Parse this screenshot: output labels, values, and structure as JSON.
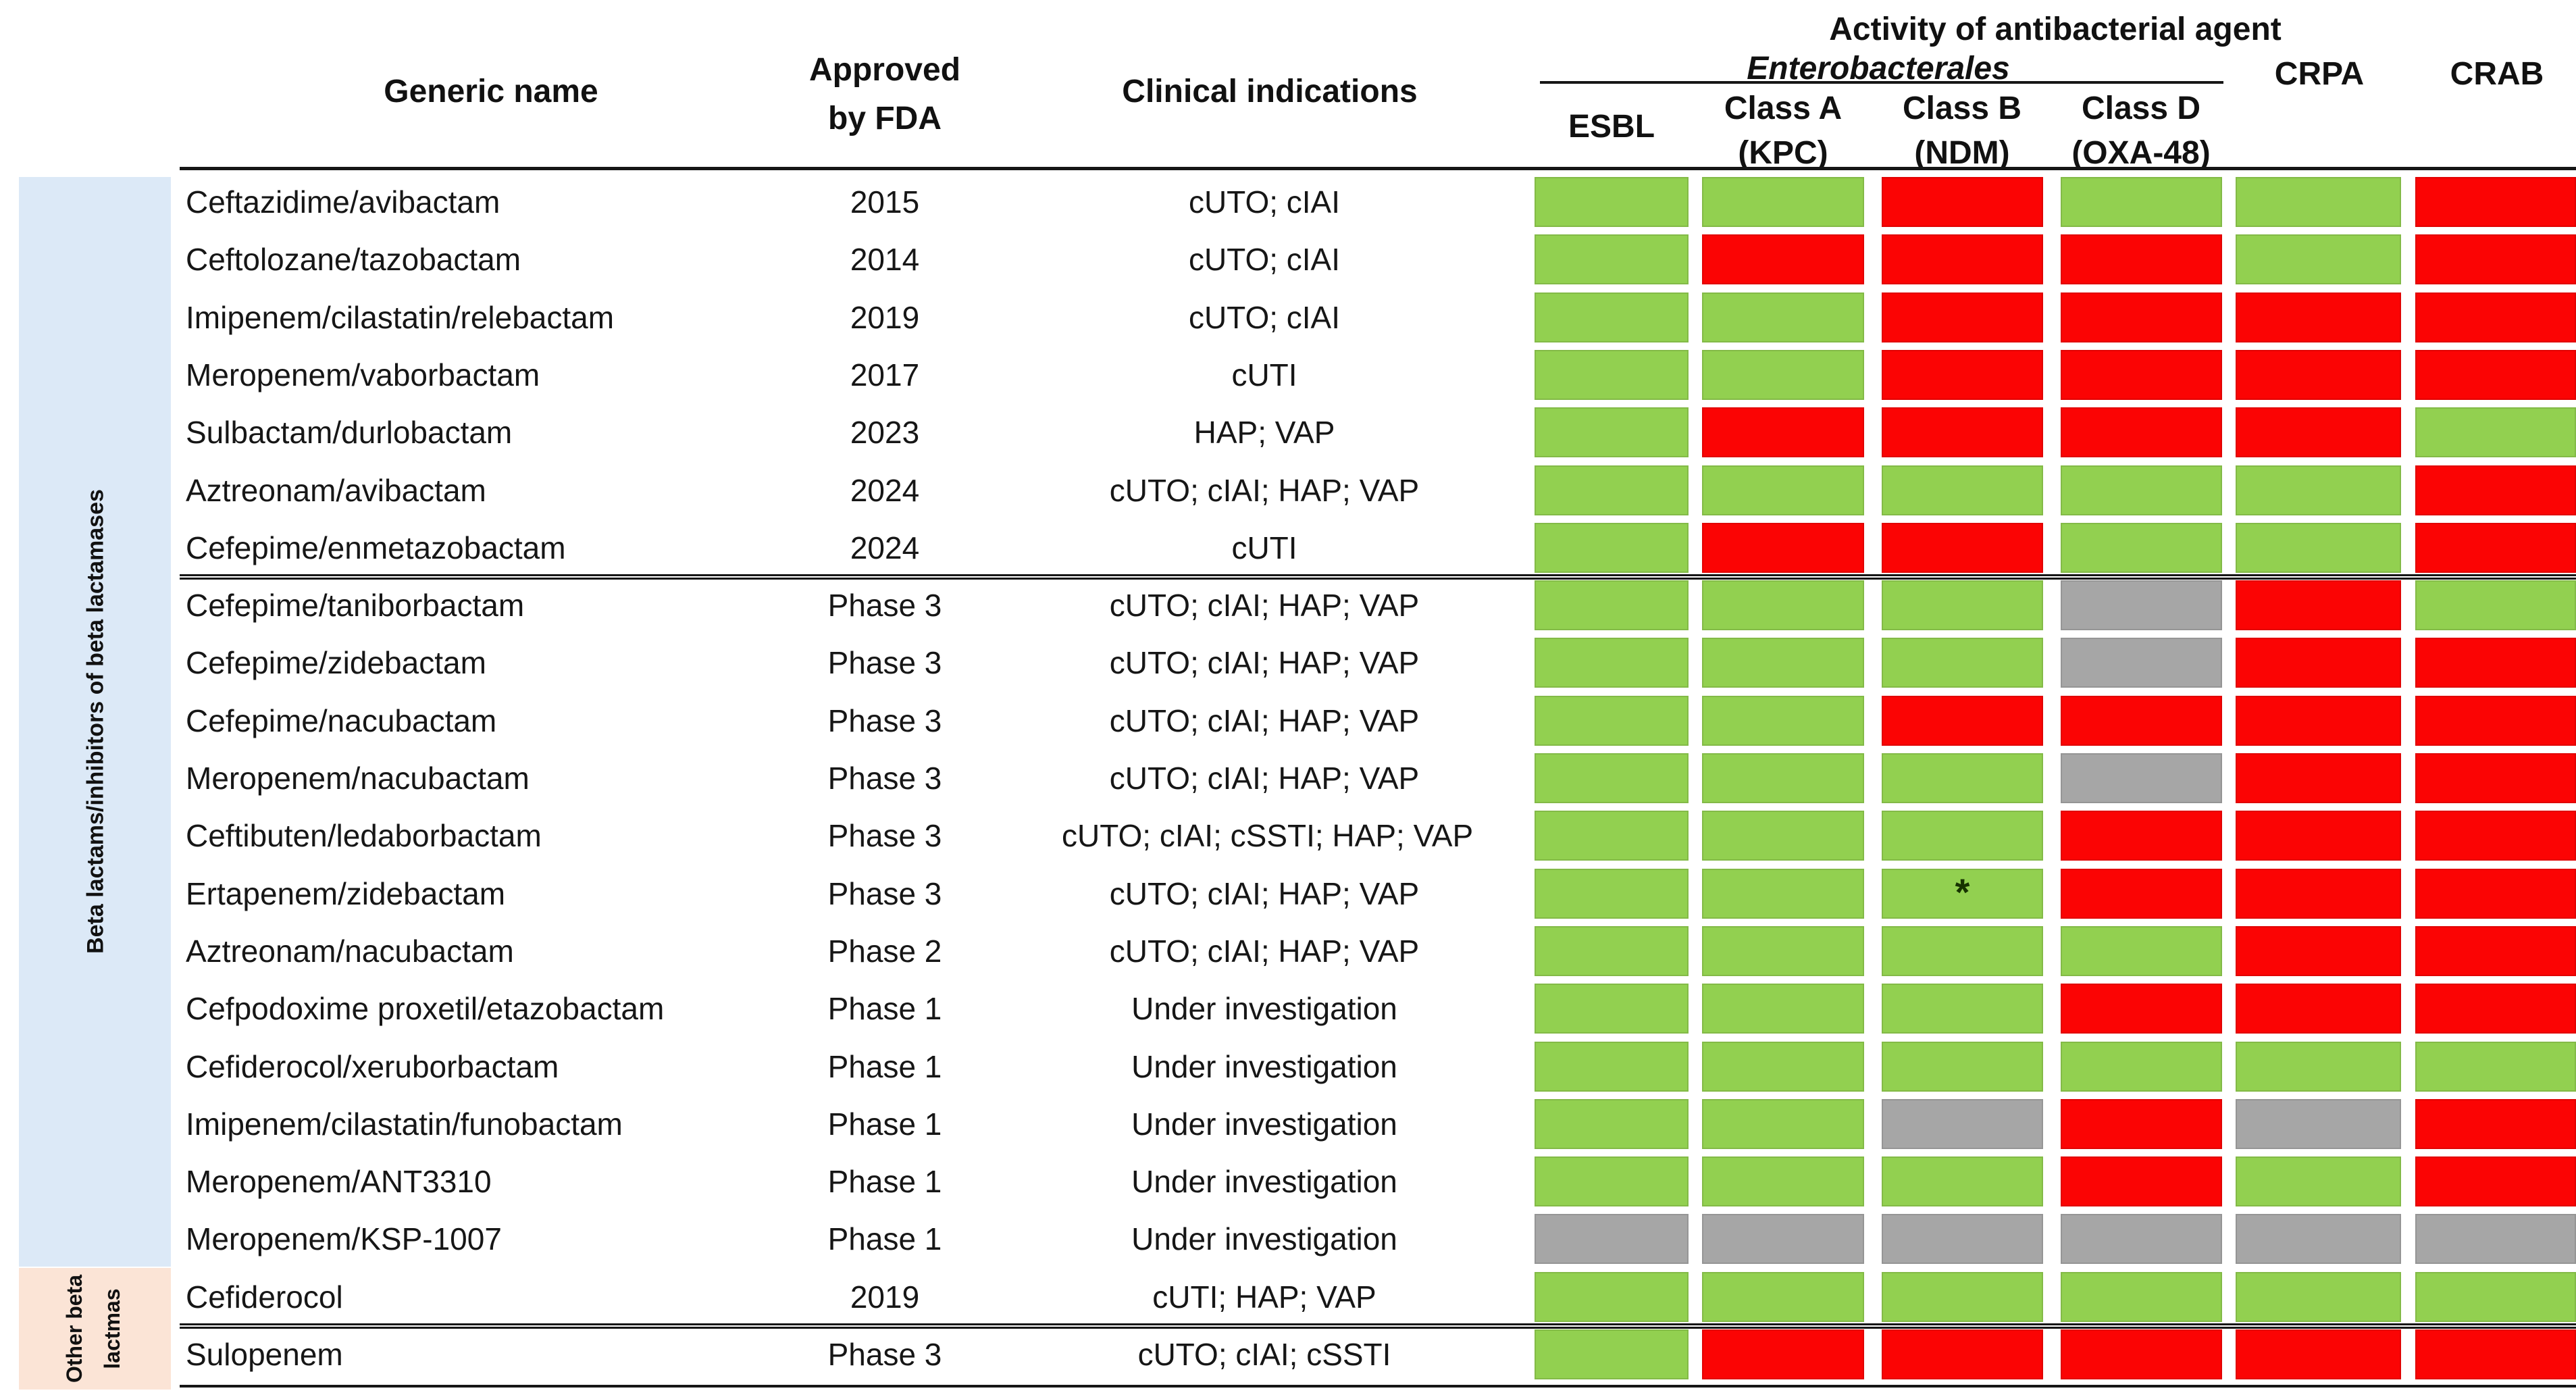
{
  "header": {
    "generic_name": "Generic name",
    "approved_line1": "Approved",
    "approved_line2": "by FDA",
    "clinical_indications": "Clinical indications",
    "activity_title": "Activity of antibacterial agent",
    "enterobacterales": "Enterobacterales",
    "esbl": "ESBL",
    "class_a_line1": "Class A",
    "class_a_line2": "(KPC)",
    "class_b_line1": "Class B",
    "class_b_line2": "(NDM)",
    "class_d_line1": "Class D",
    "class_d_line2": "(OXA-48)",
    "crpa": "CRPA",
    "crab": "CRAB"
  },
  "sidebar": {
    "group1_label": "Beta lactams/inhibitors of beta lactamases",
    "group1_color": "#dce9f7",
    "group2_label_line1": "Other beta",
    "group2_label_line2": "lactmas",
    "group2_color": "#fbe4d6"
  },
  "chart_data": {
    "type": "heatmap",
    "title": "Activity of antibacterial agent",
    "column_supergroup": {
      "label": "Enterobacterales",
      "spans_columns": [
        "ESBL",
        "Class A (KPC)",
        "Class B (NDM)",
        "Class D (OXA-48)"
      ]
    },
    "activity_columns": [
      "ESBL",
      "Class A (KPC)",
      "Class B (NDM)",
      "Class D (OXA-48)",
      "CRPA",
      "CRAB"
    ],
    "cell_legend": {
      "g": {
        "meaning": "active",
        "color": "#92d050"
      },
      "r": {
        "meaning": "not active",
        "color": "#fb0404"
      },
      "n": {
        "meaning": "no data",
        "color": "#a6a6a6"
      }
    },
    "rows": [
      {
        "name": "Ceftazidime/avibactam",
        "approved": "2015",
        "indications": "cUTO; cIAI",
        "cells": [
          "g",
          "g",
          "r",
          "g",
          "g",
          "r"
        ]
      },
      {
        "name": "Ceftolozane/tazobactam",
        "approved": "2014",
        "indications": "cUTO; cIAI",
        "cells": [
          "g",
          "r",
          "r",
          "r",
          "g",
          "r"
        ]
      },
      {
        "name": "Imipenem/cilastatin/relebactam",
        "approved": "2019",
        "indications": "cUTO; cIAI",
        "cells": [
          "g",
          "g",
          "r",
          "r",
          "r",
          "r"
        ]
      },
      {
        "name": "Meropenem/vaborbactam",
        "approved": "2017",
        "indications": "cUTI",
        "cells": [
          "g",
          "g",
          "r",
          "r",
          "r",
          "r"
        ]
      },
      {
        "name": "Sulbactam/durlobactam",
        "approved": "2023",
        "indications": "HAP; VAP",
        "cells": [
          "g",
          "r",
          "r",
          "r",
          "r",
          "g"
        ]
      },
      {
        "name": "Aztreonam/avibactam",
        "approved": "2024",
        "indications": "cUTO; cIAI; HAP; VAP",
        "cells": [
          "g",
          "g",
          "g",
          "g",
          "g",
          "r"
        ]
      },
      {
        "name": "Cefepime/enmetazobactam",
        "approved": "2024",
        "indications": "cUTI",
        "cells": [
          "g",
          "r",
          "r",
          "g",
          "g",
          "r"
        ],
        "divider_below": true
      },
      {
        "name": "Cefepime/taniborbactam",
        "approved": "Phase 3",
        "indications": "cUTO; cIAI; HAP; VAP",
        "cells": [
          "g",
          "g",
          "g",
          "n",
          "r",
          "g"
        ]
      },
      {
        "name": "Cefepime/zidebactam",
        "approved": "Phase 3",
        "indications": "cUTO; cIAI; HAP; VAP",
        "cells": [
          "g",
          "g",
          "g",
          "n",
          "r",
          "r"
        ]
      },
      {
        "name": "Cefepime/nacubactam",
        "approved": "Phase 3",
        "indications": "cUTO; cIAI; HAP; VAP",
        "cells": [
          "g",
          "g",
          "r",
          "r",
          "r",
          "r"
        ]
      },
      {
        "name": "Meropenem/nacubactam",
        "approved": "Phase 3",
        "indications": "cUTO; cIAI; HAP; VAP",
        "cells": [
          "g",
          "g",
          "g",
          "n",
          "r",
          "r"
        ]
      },
      {
        "name": "Ceftibuten/ledaborbactam",
        "approved": "Phase 3",
        "indications": "cUTO; cIAI; cSSTI; HAP; VAP",
        "cells": [
          "g",
          "g",
          "g",
          "r",
          "r",
          "r"
        ]
      },
      {
        "name": "Ertapenem/zidebactam",
        "approved": "Phase 3",
        "indications": "cUTO; cIAI; HAP; VAP",
        "cells": [
          "g",
          "g",
          "g",
          "r",
          "r",
          "r"
        ],
        "note": {
          "col": 2,
          "text": "*"
        }
      },
      {
        "name": "Aztreonam/nacubactam",
        "approved": "Phase 2",
        "indications": "cUTO; cIAI; HAP; VAP",
        "cells": [
          "g",
          "g",
          "g",
          "g",
          "r",
          "r"
        ]
      },
      {
        "name": "Cefpodoxime proxetil/etazobactam",
        "approved": "Phase 1",
        "indications": "Under investigation",
        "cells": [
          "g",
          "g",
          "g",
          "r",
          "r",
          "r"
        ]
      },
      {
        "name": "Cefiderocol/xeruborbactam",
        "approved": "Phase 1",
        "indications": "Under investigation",
        "cells": [
          "g",
          "g",
          "g",
          "g",
          "g",
          "g"
        ]
      },
      {
        "name": "Imipenem/cilastatin/funobactam",
        "approved": "Phase 1",
        "indications": "Under investigation",
        "cells": [
          "g",
          "g",
          "n",
          "r",
          "n",
          "r"
        ]
      },
      {
        "name": "Meropenem/ANT3310",
        "approved": "Phase 1",
        "indications": "Under investigation",
        "cells": [
          "g",
          "g",
          "g",
          "r",
          "g",
          "r"
        ]
      },
      {
        "name": "Meropenem/KSP-1007",
        "approved": "Phase 1",
        "indications": "Under investigation",
        "cells": [
          "n",
          "n",
          "n",
          "n",
          "n",
          "n"
        ]
      },
      {
        "name": "Cefiderocol",
        "approved": "2019",
        "indications": "cUTI; HAP; VAP",
        "cells": [
          "g",
          "g",
          "g",
          "g",
          "g",
          "g"
        ],
        "divider_below": true
      },
      {
        "name": "Sulopenem",
        "approved": "Phase 3",
        "indications": "cUTO; cIAI; cSSTI",
        "cells": [
          "g",
          "r",
          "r",
          "r",
          "r",
          "r"
        ]
      }
    ]
  }
}
